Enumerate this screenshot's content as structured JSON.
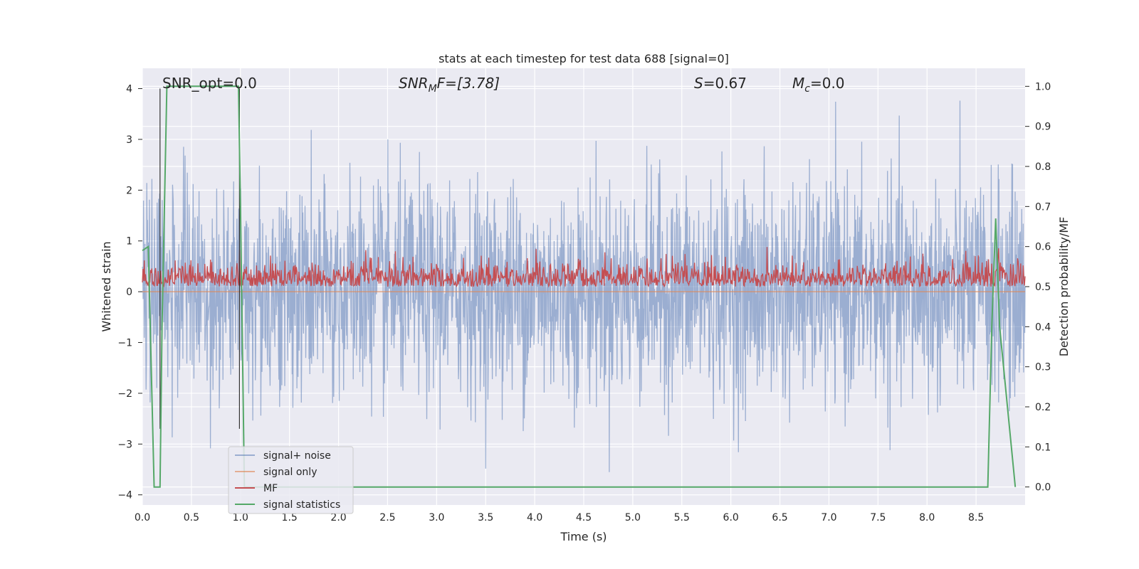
{
  "chart_data": {
    "type": "line",
    "title": "stats at each timestep for test data 688 [signal=0]",
    "xlabel": "Time (s)",
    "ylabel": "Whitened strain",
    "y2label": "Detection probability/MF",
    "xlim": [
      0.0,
      9.0
    ],
    "ylim": [
      -4.2,
      4.4
    ],
    "y2lim": [
      -0.045,
      1.045
    ],
    "xticks": [
      "0.0",
      "0.5",
      "1.0",
      "1.5",
      "2.0",
      "2.5",
      "3.0",
      "3.5",
      "4.0",
      "4.5",
      "5.0",
      "5.5",
      "6.0",
      "6.5",
      "7.0",
      "7.5",
      "8.0",
      "8.5"
    ],
    "yticks": [
      "−4",
      "−3",
      "−2",
      "−1",
      "0",
      "1",
      "2",
      "3",
      "4"
    ],
    "y2ticks": [
      "0.0",
      "0.1",
      "0.2",
      "0.3",
      "0.4",
      "0.5",
      "0.6",
      "0.7",
      "0.8",
      "0.9",
      "1.0"
    ],
    "grid": true,
    "legend_placement": "lower-left",
    "annotations": {
      "snr_opt": "SNR_opt=0.0",
      "snr_mf_sym": "SNR",
      "snr_mf_sub": "M",
      "snr_mf_rest": "F=[3.78]",
      "s_sym": "S",
      "s_rest": "=0.67",
      "mc_sym": "M",
      "mc_sub": "c",
      "mc_rest": "=0.0"
    },
    "series": [
      {
        "name": "signal+ noise",
        "color": "#4c72b0",
        "axis": "left",
        "description_values": {
          "approx_range": [
            -3.7,
            4.0
          ]
        }
      },
      {
        "name": "signal only",
        "color": "#dd8452",
        "axis": "left",
        "x": [
          0.0,
          9.0
        ],
        "y": [
          0.0,
          0.0
        ]
      },
      {
        "name": "MF",
        "color": "#c44e52",
        "axis": "right",
        "approx_range": [
          0.5,
          0.6
        ]
      },
      {
        "name": "signal statistics",
        "color": "#55a868",
        "axis": "right",
        "x": [
          0.0,
          0.06,
          0.1,
          0.12,
          0.18,
          0.2,
          0.25,
          0.98,
          1.0,
          1.04,
          1.08,
          8.0,
          8.62,
          8.66,
          8.7,
          8.74,
          8.9
        ],
        "y": [
          0.59,
          0.6,
          0.2,
          0.0,
          0.0,
          0.4,
          1.0,
          1.0,
          0.7,
          0.0,
          0.0,
          0.0,
          0.0,
          0.4,
          0.67,
          0.4,
          0.0
        ]
      }
    ],
    "vlines": [
      0.18,
      0.99
    ]
  }
}
